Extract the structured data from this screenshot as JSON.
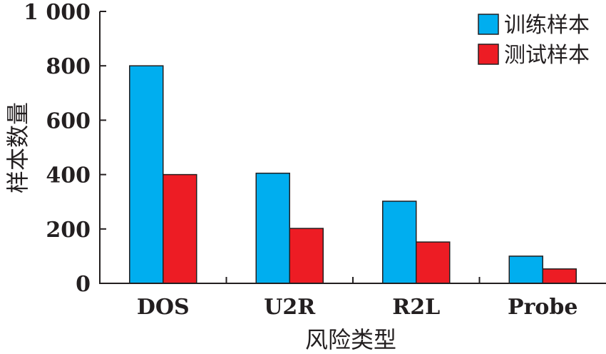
{
  "chart_data": {
    "type": "bar",
    "categories": [
      "DOS",
      "U2R",
      "R2L",
      "Probe"
    ],
    "series": [
      {
        "name": "训练样本",
        "values": [
          800,
          405,
          302,
          100
        ],
        "color": "#00aeef"
      },
      {
        "name": "测试样本",
        "values": [
          400,
          202,
          152,
          53
        ],
        "color": "#ed1c24"
      }
    ],
    "xlabel": "风险类型",
    "ylabel": "样本数量",
    "ylim": [
      0,
      1000
    ],
    "yticks": [
      0,
      200,
      400,
      600,
      800,
      1000
    ],
    "ytick_labels": [
      "0",
      "200",
      "400",
      "600",
      "800",
      "1 000"
    ],
    "grid": false,
    "legend_position": "top-right"
  }
}
